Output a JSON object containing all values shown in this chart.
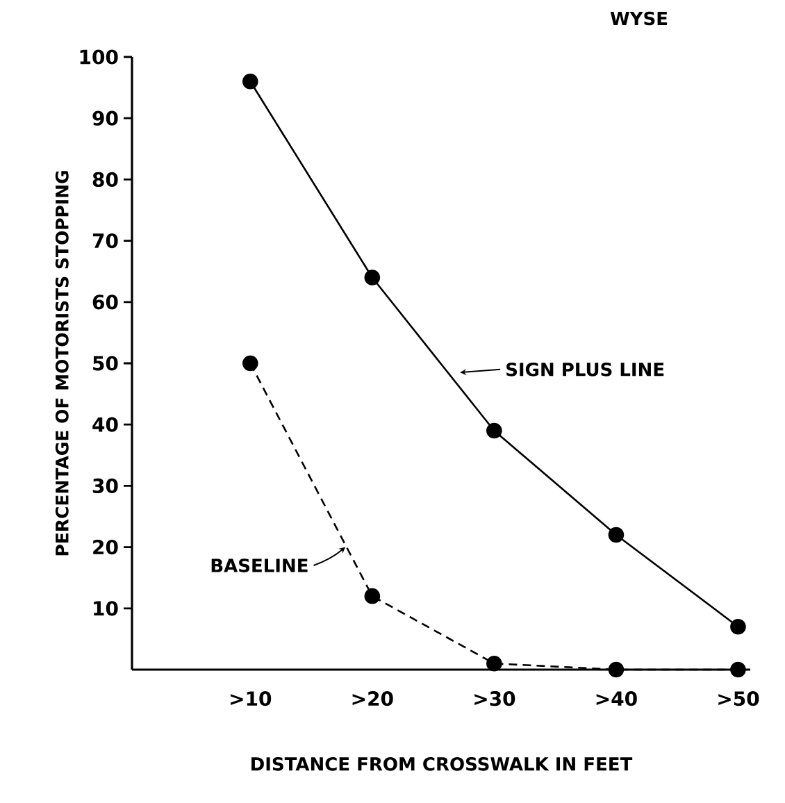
{
  "chart_data": {
    "type": "line",
    "title": "WYSE",
    "xlabel": "DISTANCE FROM CROSSWALK IN FEET",
    "ylabel": "PERCENTAGE OF MOTORISTS STOPPING",
    "categories": [
      ">10",
      ">20",
      ">30",
      ">40",
      ">50"
    ],
    "series": [
      {
        "name": "SIGN PLUS LINE",
        "color": "#000000",
        "line_style": "solid",
        "values": [
          96,
          64,
          39,
          22,
          7
        ]
      },
      {
        "name": "BASELINE",
        "color": "#000000",
        "line_style": "dashed",
        "values": [
          50,
          12,
          1,
          0,
          0
        ]
      }
    ],
    "ylim": [
      0,
      100
    ],
    "yticks": [
      10,
      20,
      30,
      40,
      50,
      60,
      70,
      80,
      90,
      100
    ],
    "marker": "circle",
    "grid": false
  }
}
